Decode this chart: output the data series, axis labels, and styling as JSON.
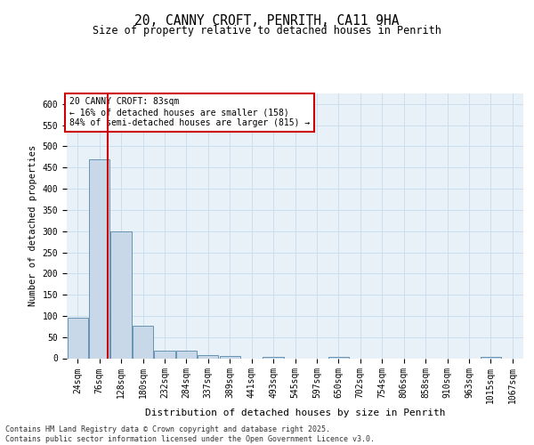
{
  "title1": "20, CANNY CROFT, PENRITH, CA11 9HA",
  "title2": "Size of property relative to detached houses in Penrith",
  "xlabel": "Distribution of detached houses by size in Penrith",
  "ylabel": "Number of detached properties",
  "footer1": "Contains HM Land Registry data © Crown copyright and database right 2025.",
  "footer2": "Contains public sector information licensed under the Open Government Licence v3.0.",
  "annotation_line1": "20 CANNY CROFT: 83sqm",
  "annotation_line2": "← 16% of detached houses are smaller (158)",
  "annotation_line3": "84% of semi-detached houses are larger (815) →",
  "bar_color": "#c8d8e8",
  "bar_edge_color": "#5588aa",
  "vline_color": "#cc0000",
  "annotation_box_color": "#cc0000",
  "grid_color": "#ccddee",
  "background_color": "#e8f0f8",
  "fig_background": "#ffffff",
  "ylim": [
    0,
    625
  ],
  "yticks": [
    0,
    50,
    100,
    150,
    200,
    250,
    300,
    350,
    400,
    450,
    500,
    550,
    600
  ],
  "bins": [
    "24sqm",
    "76sqm",
    "128sqm",
    "180sqm",
    "232sqm",
    "284sqm",
    "337sqm",
    "389sqm",
    "441sqm",
    "493sqm",
    "545sqm",
    "597sqm",
    "650sqm",
    "702sqm",
    "754sqm",
    "806sqm",
    "858sqm",
    "910sqm",
    "963sqm",
    "1015sqm",
    "1067sqm"
  ],
  "values": [
    95,
    470,
    300,
    77,
    18,
    18,
    8,
    5,
    0,
    4,
    0,
    0,
    3,
    0,
    0,
    0,
    0,
    0,
    0,
    4,
    0
  ],
  "vline_x": 1.38,
  "title1_fontsize": 10.5,
  "title2_fontsize": 8.5,
  "xlabel_fontsize": 8,
  "ylabel_fontsize": 7.5,
  "tick_fontsize": 7,
  "footer_fontsize": 6,
  "annot_fontsize": 7
}
